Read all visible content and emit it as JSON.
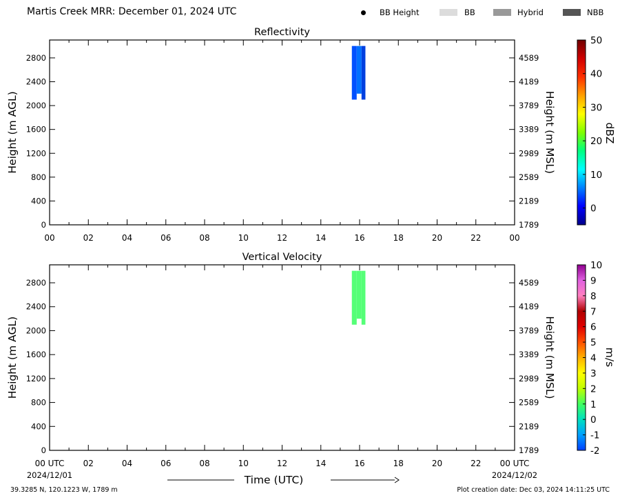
{
  "header": {
    "title": "Martis Creek MRR:  December 01, 2024 UTC",
    "legend": [
      {
        "label": "BB Height",
        "marker": "dot",
        "color": "#000000"
      },
      {
        "label": "BB",
        "marker": "swatch",
        "color": "#dcdcdc"
      },
      {
        "label": "Hybrid",
        "marker": "swatch",
        "color": "#999999"
      },
      {
        "label": "NBB",
        "marker": "swatch",
        "color": "#555555"
      }
    ]
  },
  "footer": {
    "location": "39.3285 N, 120.1223 W, 1789 m",
    "creation": "Plot creation date: Dec 03, 2024 14:11:25 UTC"
  },
  "chart_data": [
    {
      "type": "heatmap",
      "title": "Reflectivity",
      "xlabel": "",
      "ylabel": "Height (m AGL)",
      "ylabel_right": "Height (m MSL)",
      "x_ticks": [
        "00",
        "02",
        "04",
        "06",
        "08",
        "10",
        "12",
        "14",
        "16",
        "18",
        "20",
        "22",
        "00"
      ],
      "y_ticks": [
        0,
        400,
        800,
        1200,
        1600,
        2000,
        2400,
        2800
      ],
      "y_ticks_right": [
        "1789",
        "2189",
        "2589",
        "2989",
        "3389",
        "3789",
        "4189",
        "4589"
      ],
      "xlim_hours": [
        0,
        24
      ],
      "ylim": [
        0,
        3100
      ],
      "colorbar": {
        "label": "dBZ",
        "range": [
          -5,
          50
        ],
        "ticks": [
          "0",
          "10",
          "20",
          "30",
          "40",
          "50"
        ],
        "colors": [
          "#00008a",
          "#0000ff",
          "#0080ff",
          "#00ffff",
          "#00ff80",
          "#80ff00",
          "#ffff00",
          "#ffa000",
          "#ff3000",
          "#d00000",
          "#700000"
        ]
      },
      "echoes": [
        {
          "hour_start": 15.6,
          "hour_end": 15.85,
          "height_bottom": 2100,
          "height_top": 3000,
          "value": 4,
          "color": "#0050ff"
        },
        {
          "hour_start": 15.85,
          "hour_end": 16.1,
          "height_bottom": 2200,
          "height_top": 3000,
          "value": 6,
          "color": "#0070ff"
        },
        {
          "hour_start": 16.1,
          "hour_end": 16.3,
          "height_bottom": 2100,
          "height_top": 3000,
          "value": 2,
          "color": "#0040e0"
        }
      ]
    },
    {
      "type": "heatmap",
      "title": "Vertical Velocity",
      "xlabel": "Time (UTC)",
      "ylabel": "Height (m AGL)",
      "ylabel_right": "Height (m MSL)",
      "x_ticks": [
        "00 UTC",
        "02",
        "04",
        "06",
        "08",
        "10",
        "12",
        "14",
        "16",
        "18",
        "20",
        "22",
        "00 UTC"
      ],
      "x_subticks": {
        "first": "2024/12/01",
        "last": "2024/12/02"
      },
      "y_ticks": [
        0,
        400,
        800,
        1200,
        1600,
        2000,
        2400,
        2800
      ],
      "y_ticks_right": [
        "1789",
        "2189",
        "2589",
        "2989",
        "3389",
        "3789",
        "4189",
        "4589"
      ],
      "xlim_hours": [
        0,
        24
      ],
      "ylim": [
        0,
        3100
      ],
      "colorbar": {
        "label": "m/s",
        "range": [
          -2,
          10
        ],
        "ticks": [
          "-2",
          "-1",
          "0",
          "1",
          "2",
          "3",
          "4",
          "5",
          "6",
          "7",
          "8",
          "9",
          "10"
        ],
        "colors": [
          "#0040ff",
          "#00a0ff",
          "#00e0c0",
          "#40ff60",
          "#c0ff00",
          "#ffff00",
          "#ffb000",
          "#ff5000",
          "#e00000",
          "#b00000",
          "#ff80c0",
          "#e060e0",
          "#900090"
        ]
      },
      "echoes": [
        {
          "hour_start": 15.6,
          "hour_end": 15.85,
          "height_bottom": 2100,
          "height_top": 3000,
          "value": 1,
          "color": "#55ff77"
        },
        {
          "hour_start": 15.85,
          "hour_end": 16.1,
          "height_bottom": 2200,
          "height_top": 3000,
          "value": 1,
          "color": "#55ff77"
        },
        {
          "hour_start": 16.1,
          "hour_end": 16.3,
          "height_bottom": 2100,
          "height_top": 3000,
          "value": 1,
          "color": "#55ff77"
        }
      ]
    }
  ]
}
